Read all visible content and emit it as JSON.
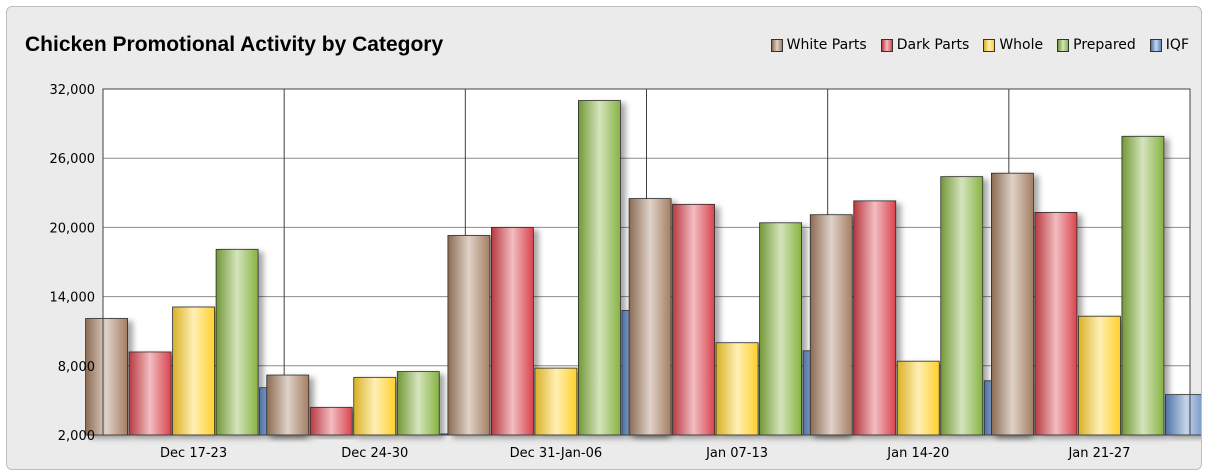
{
  "chart_data": {
    "type": "bar",
    "title": "Chicken Promotional Activity by Category",
    "xlabel": "",
    "ylabel": "",
    "categories": [
      "Dec 17-23",
      "Dec 24-30",
      "Dec 31-Jan-06",
      "Jan 07-13",
      "Jan 14-20",
      "Jan 21-27"
    ],
    "ylim": [
      2000,
      32000
    ],
    "yticks": [
      "2,000",
      "8,000",
      "14,000",
      "20,000",
      "26,000",
      "32,000"
    ],
    "ytick_values": [
      2000,
      8000,
      14000,
      20000,
      26000,
      32000
    ],
    "grid": true,
    "legend_position": "top-right",
    "series": [
      {
        "name": "White Parts",
        "color": "#a47e62",
        "values": [
          12100,
          7200,
          19300,
          22500,
          21100,
          24700
        ]
      },
      {
        "name": "Dark Parts",
        "color": "#d9434d",
        "values": [
          9200,
          4400,
          20000,
          22000,
          22300,
          21300
        ]
      },
      {
        "name": "Whole",
        "color": "#ffd02b",
        "values": [
          13100,
          7000,
          7800,
          10000,
          8400,
          12300
        ]
      },
      {
        "name": "Prepared",
        "color": "#86b341",
        "values": [
          18100,
          7500,
          31000,
          20400,
          24400,
          27900
        ]
      },
      {
        "name": "IQF",
        "color": "#5d86c2",
        "values": [
          6100,
          2100,
          12800,
          9300,
          6700,
          5500
        ]
      }
    ]
  }
}
